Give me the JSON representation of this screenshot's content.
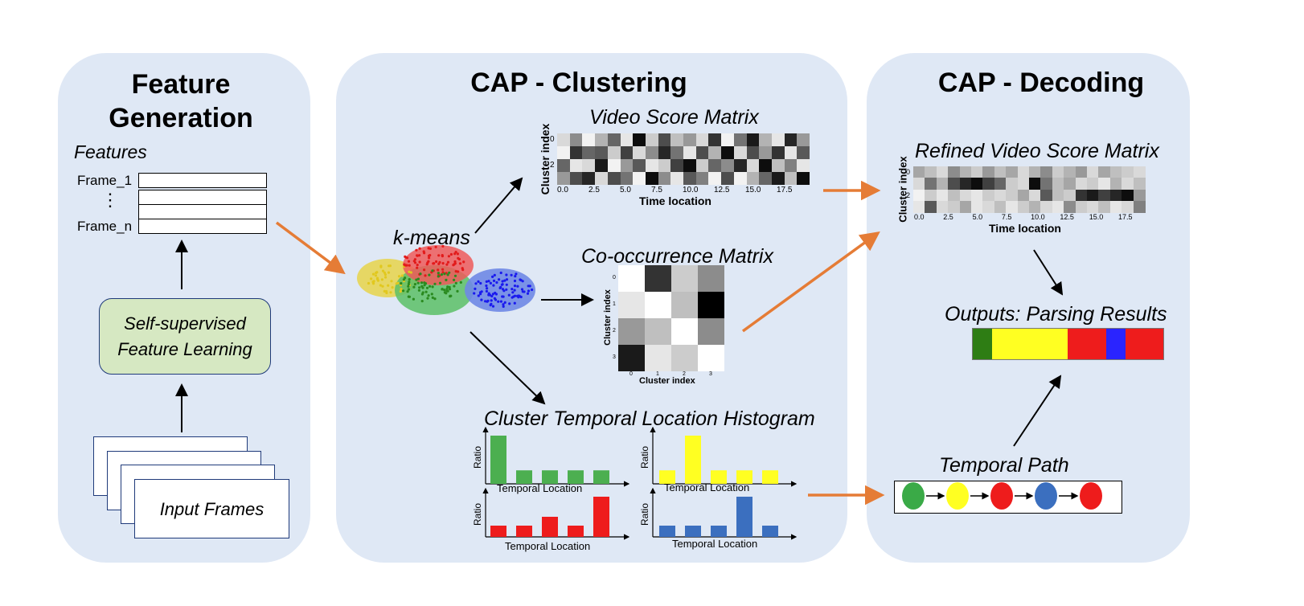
{
  "panels": {
    "feature_generation": {
      "title_line1": "Feature",
      "title_line2": "Generation",
      "features_label": "Features",
      "frame_first": "Frame_1",
      "frame_last": "Frame_n",
      "ellipsis": "⋮",
      "learning_box_line1": "Self-supervised",
      "learning_box_line2": "Feature Learning",
      "input_frames": "Input Frames"
    },
    "clustering": {
      "title": "CAP - Clustering",
      "kmeans_label": "k-means",
      "video_score_title": "Video Score Matrix",
      "cooccurrence_title": "Co-occurrence Matrix",
      "histogram_title": "Cluster Temporal Location Histogram"
    },
    "decoding": {
      "title": "CAP - Decoding",
      "refined_title": "Refined Video Score Matrix",
      "outputs_title": "Outputs: Parsing Results",
      "temporal_path_title": "Temporal Path"
    }
  },
  "video_score_matrix": {
    "ylabel": "Cluster index",
    "xlabel": "Time location",
    "y_ticks": [
      "0",
      "",
      "2",
      ""
    ],
    "x_ticks": [
      "0.0",
      "2.5",
      "5.0",
      "7.5",
      "10.0",
      "12.5",
      "15.0",
      "17.5"
    ],
    "cells": [
      [
        0.85,
        0.55,
        0.95,
        0.7,
        0.4,
        0.9,
        0.05,
        0.8,
        0.3,
        0.75,
        0.6,
        0.85,
        0.2,
        0.95,
        0.45,
        0.1,
        0.7,
        0.9,
        0.15,
        0.6
      ],
      [
        0.95,
        0.2,
        0.4,
        0.35,
        0.8,
        0.25,
        0.85,
        0.55,
        0.15,
        0.45,
        0.9,
        0.3,
        0.7,
        0.05,
        0.85,
        0.3,
        0.6,
        0.2,
        0.9,
        0.35
      ],
      [
        0.4,
        0.9,
        0.85,
        0.1,
        0.95,
        0.6,
        0.35,
        0.9,
        0.8,
        0.25,
        0.05,
        0.8,
        0.4,
        0.55,
        0.15,
        0.85,
        0.05,
        0.75,
        0.5,
        0.9
      ],
      [
        0.6,
        0.3,
        0.15,
        0.85,
        0.3,
        0.45,
        0.95,
        0.05,
        0.55,
        0.9,
        0.35,
        0.5,
        0.95,
        0.3,
        0.95,
        0.7,
        0.4,
        0.1,
        0.75,
        0.05
      ]
    ]
  },
  "cooccurrence_matrix": {
    "ylabel": "Cluster index",
    "xlabel": "Cluster index",
    "ticks": [
      "0",
      "1",
      "2",
      "3"
    ],
    "cells": [
      [
        1.0,
        0.2,
        0.8,
        0.55
      ],
      [
        0.9,
        1.0,
        0.75,
        0.0
      ],
      [
        0.6,
        0.75,
        1.0,
        0.55
      ],
      [
        0.1,
        0.9,
        0.8,
        1.0
      ]
    ]
  },
  "refined_matrix": {
    "ylabel": "Cluster index",
    "xlabel": "Time location",
    "y_ticks": [
      "0",
      "",
      "2",
      ""
    ],
    "x_ticks": [
      "0.0",
      "2.5",
      "5.0",
      "7.5",
      "10.0",
      "12.5",
      "15.0",
      "17.5"
    ],
    "cells": [
      [
        0.65,
        0.75,
        0.85,
        0.55,
        0.7,
        0.8,
        0.6,
        0.75,
        0.65,
        0.85,
        0.7,
        0.55,
        0.8,
        0.7,
        0.6,
        0.85,
        0.65,
        0.75,
        0.8,
        0.85
      ],
      [
        0.85,
        0.45,
        0.7,
        0.3,
        0.15,
        0.05,
        0.25,
        0.4,
        0.8,
        0.85,
        0.05,
        0.45,
        0.75,
        0.65,
        0.85,
        0.8,
        0.9,
        0.7,
        0.85,
        0.75
      ],
      [
        0.95,
        0.8,
        0.9,
        0.75,
        0.85,
        0.9,
        0.8,
        0.85,
        0.8,
        0.65,
        0.85,
        0.35,
        0.75,
        0.8,
        0.2,
        0.1,
        0.25,
        0.15,
        0.05,
        0.6
      ],
      [
        0.9,
        0.35,
        0.85,
        0.8,
        0.65,
        0.9,
        0.85,
        0.75,
        0.9,
        0.8,
        0.7,
        0.85,
        0.9,
        0.55,
        0.8,
        0.85,
        0.75,
        0.9,
        0.85,
        0.5
      ]
    ]
  },
  "parsing_results": [
    {
      "color": "#2e7d14",
      "fraction": 0.1
    },
    {
      "color": "#ffff22",
      "fraction": 0.4
    },
    {
      "color": "#ee1c1c",
      "fraction": 0.2
    },
    {
      "color": "#2a24ff",
      "fraction": 0.1
    },
    {
      "color": "#ee1c1c",
      "fraction": 0.2
    }
  ],
  "temporal_path": [
    "#3aaa47",
    "#ffff22",
    "#ee1c1c",
    "#3b6fbf",
    "#ee1c1c"
  ],
  "histograms": [
    {
      "color": "#4caf50",
      "values": [
        1.0,
        0.28,
        0.28,
        0.28,
        0.28
      ],
      "ylabel": "Ratio",
      "xlabel": "Temporal Location"
    },
    {
      "color": "#ffff22",
      "values": [
        0.28,
        1.0,
        0.28,
        0.28,
        0.28
      ],
      "ylabel": "Ratio",
      "xlabel": "Temporal Location"
    },
    {
      "color": "#ee1c1c",
      "values": [
        0.28,
        0.28,
        0.5,
        0.28,
        1.0
      ],
      "ylabel": "Ratio",
      "xlabel": "Temporal Location"
    },
    {
      "color": "#3b6fbf",
      "values": [
        0.28,
        0.28,
        0.28,
        1.0,
        0.28
      ],
      "ylabel": "Ratio",
      "xlabel": "Temporal Location"
    }
  ],
  "kmeans_clusters": [
    {
      "name": "yellow-cluster",
      "color": "#e1c81e",
      "fill": "#e8d34a"
    },
    {
      "name": "red-cluster",
      "color": "#e21b1b",
      "fill": "#ee5a5a"
    },
    {
      "name": "green-cluster",
      "color": "#2a8a1f",
      "fill": "#5cc066"
    },
    {
      "name": "blue-cluster",
      "color": "#1a1aee",
      "fill": "#6f88e6"
    }
  ],
  "colors": {
    "panel_bg": "#dfe8f5",
    "arrow_orange": "#e57c36",
    "learning_box_bg": "#d6e8c2"
  }
}
